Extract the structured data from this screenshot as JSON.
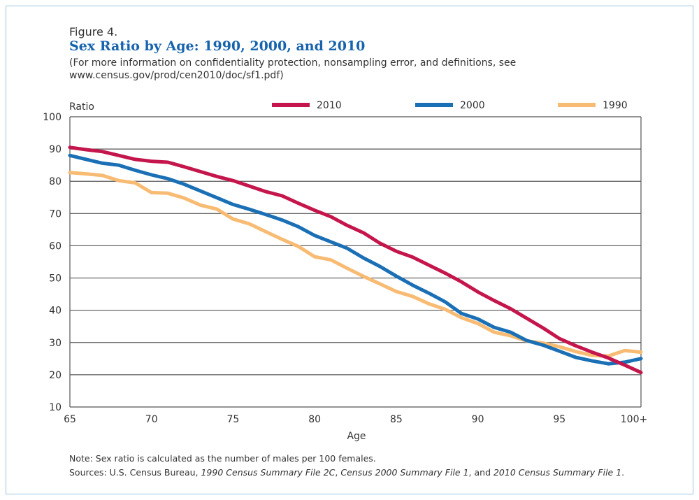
{
  "figure_label": "Figure 4.",
  "title": "Sex Ratio by Age: 1990, 2000, and 2010",
  "subtitle_line1": "(For more information on confidentiality protection, nonsampling error, and definitions, see",
  "subtitle_line2": "www.census.gov/prod/cen2010/doc/sf1.pdf)",
  "note": "Note: Sex ratio is calculated as the number of males per 100 females.",
  "sources": {
    "prefix": "Sources: U.S. Census Bureau, ",
    "s1": "1990 Census Summary File 2C",
    "sep1": ", ",
    "s2": "Census 2000 Summary File 1",
    "sep2": ", and ",
    "s3": "2010 Census Summary File 1",
    "end": "."
  },
  "chart_data": {
    "type": "line",
    "ylabel": "Ratio",
    "xlabel": "Age",
    "ylim": [
      10,
      100
    ],
    "yticks": [
      10,
      20,
      30,
      40,
      50,
      60,
      70,
      80,
      90,
      100
    ],
    "xticks": [
      {
        "age": 65,
        "label": "65"
      },
      {
        "age": 70,
        "label": "70"
      },
      {
        "age": 75,
        "label": "75"
      },
      {
        "age": 80,
        "label": "80"
      },
      {
        "age": 85,
        "label": "85"
      },
      {
        "age": 90,
        "label": "90"
      },
      {
        "age": 95,
        "label": "95"
      },
      {
        "age": 100,
        "label": "100+"
      }
    ],
    "x": [
      65,
      66,
      67,
      68,
      69,
      70,
      71,
      72,
      73,
      74,
      75,
      76,
      77,
      78,
      79,
      80,
      81,
      82,
      83,
      84,
      85,
      86,
      87,
      88,
      89,
      90,
      91,
      92,
      93,
      94,
      95,
      96,
      97,
      98,
      99,
      100
    ],
    "grid": true,
    "legend_placement": "top",
    "series": [
      {
        "name": "2010",
        "color": "#c4164c",
        "values": [
          90.5,
          89.8,
          89.2,
          88,
          86.8,
          86.2,
          85.9,
          84.5,
          83,
          81.5,
          80.2,
          78.5,
          76.8,
          75.5,
          73.2,
          71,
          69,
          66.3,
          64,
          60.8,
          58.3,
          56.5,
          54,
          51.5,
          48.8,
          45.7,
          43,
          40.5,
          37.5,
          34.5,
          31.2,
          29,
          27,
          25.2,
          23,
          20.7
        ]
      },
      {
        "name": "2000",
        "color": "#1a6fb5",
        "values": [
          88,
          86.8,
          85.6,
          85,
          83.4,
          82,
          80.8,
          79.1,
          77,
          74.9,
          72.8,
          71.3,
          69.7,
          68,
          65.9,
          63.2,
          61.2,
          59.2,
          56.2,
          53.6,
          50.6,
          47.8,
          45.3,
          42.6,
          39,
          37.3,
          34.7,
          33.2,
          30.6,
          29.2,
          27.3,
          25.4,
          24.3,
          23.4,
          23.9,
          25
        ]
      },
      {
        "name": "1990",
        "color": "#f8bb73",
        "values": [
          82.7,
          82.3,
          81.8,
          80.2,
          79.5,
          76.5,
          76.3,
          74.8,
          72.6,
          71.4,
          68.3,
          66.8,
          64.4,
          62,
          59.8,
          56.6,
          55.6,
          53,
          50.5,
          48.2,
          45.8,
          44.3,
          42,
          40.3,
          37.7,
          35.9,
          33.2,
          32.1,
          30.5,
          29.8,
          28.7,
          27.2,
          26,
          25.8,
          27.5,
          27
        ]
      }
    ]
  }
}
